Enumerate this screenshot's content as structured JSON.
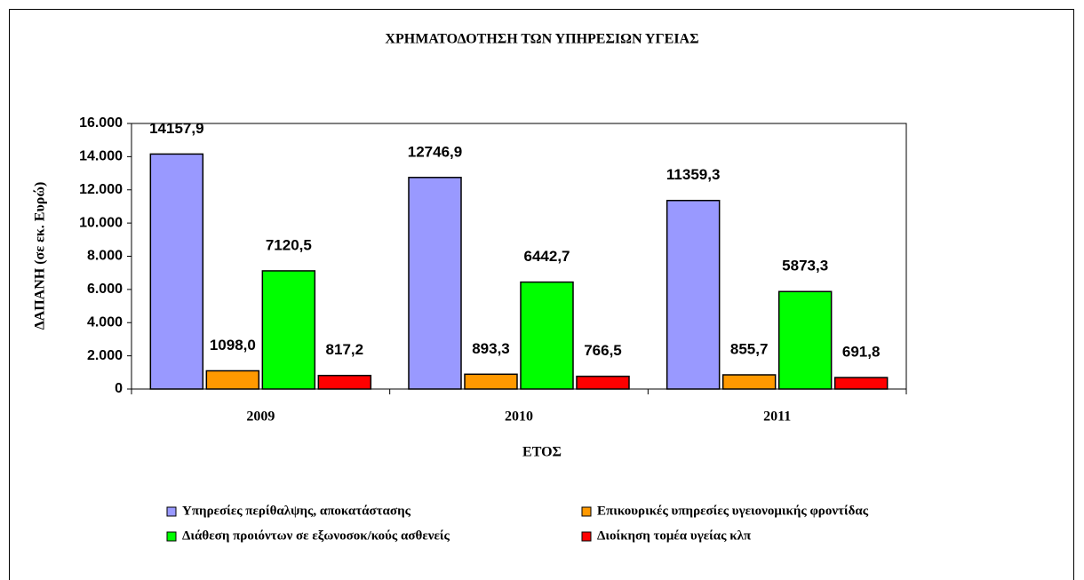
{
  "chart_data": {
    "type": "bar",
    "title": "ΧΡΗΜΑΤΟΔΟΤΗΣΗ ΤΩΝ ΥΠΗΡΕΣΙΩΝ ΥΓΕΙΑΣ",
    "x_label": "ΕΤΟΣ",
    "y_label": "ΔΑΠΑΝΗ (σε εκ. Ευρώ)",
    "categories": [
      "2009",
      "2010",
      "2011"
    ],
    "series": [
      {
        "name": "Υπηρεσίες περίθαλψης, αποκατάστασης",
        "color": "#9999ff",
        "values": [
          14157.9,
          12746.9,
          11359.3
        ],
        "value_labels": [
          "14157,9",
          "12746,9",
          "11359,3"
        ]
      },
      {
        "name": "Επικουρικές υπηρεσίες υγειονομικής φροντίδας",
        "color": "#ff9900",
        "values": [
          1098.0,
          893.3,
          855.7
        ],
        "value_labels": [
          "1098,0",
          "893,3",
          "855,7"
        ]
      },
      {
        "name": "Διάθεση προιόντων σε εξωνοσοκ/κούς ασθενείς",
        "color": "#00ff00",
        "values": [
          7120.5,
          6442.7,
          5873.3
        ],
        "value_labels": [
          "7120,5",
          "6442,7",
          "5873,3"
        ]
      },
      {
        "name": "Διοίκηση τομέα υγείας κλπ",
        "color": "#ff0000",
        "values": [
          817.2,
          766.5,
          691.8
        ],
        "value_labels": [
          "817,2",
          "766,5",
          "691,8"
        ]
      }
    ],
    "ylim": [
      0,
      16000
    ],
    "yticks": [
      0,
      {
        "value": 2000,
        "label": "2.000"
      },
      {
        "value": 4000,
        "label": "4.000"
      },
      {
        "value": 6000,
        "label": "6.000"
      },
      {
        "value": 8000,
        "label": "8.000"
      },
      {
        "value": 10000,
        "label": "10.000"
      },
      {
        "value": 12000,
        "label": "12.000"
      },
      {
        "value": 14000,
        "label": "14.000"
      },
      {
        "value": 16000,
        "label": "16.000"
      }
    ],
    "legend": "bottom"
  }
}
